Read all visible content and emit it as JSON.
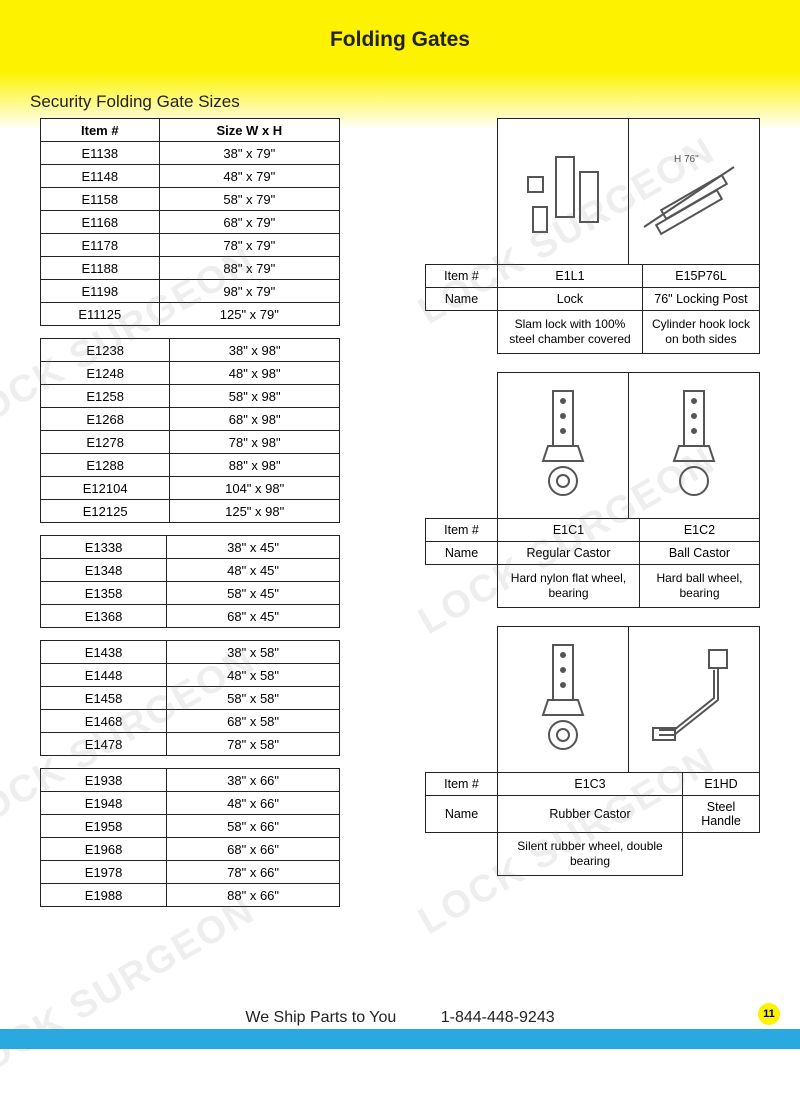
{
  "page_title": "Folding Gates",
  "subtitle": "Security Folding Gate Sizes",
  "size_table": {
    "columns": [
      "Item #",
      "Size W x H"
    ],
    "groups": [
      [
        [
          "E1138",
          "38\" x 79\""
        ],
        [
          "E1148",
          "48\" x 79\""
        ],
        [
          "E1158",
          "58\" x 79\""
        ],
        [
          "E1168",
          "68\" x 79\""
        ],
        [
          "E1178",
          "78\" x 79\""
        ],
        [
          "E1188",
          "88\" x 79\""
        ],
        [
          "E1198",
          "98\" x 79\""
        ],
        [
          "E11125",
          "125\" x 79\""
        ]
      ],
      [
        [
          "E1238",
          "38\" x 98\""
        ],
        [
          "E1248",
          "48\" x 98\""
        ],
        [
          "E1258",
          "58\" x 98\""
        ],
        [
          "E1268",
          "68\" x 98\""
        ],
        [
          "E1278",
          "78\" x 98\""
        ],
        [
          "E1288",
          "88\" x 98\""
        ],
        [
          "E12104",
          "104\" x 98\""
        ],
        [
          "E12125",
          "125\" x 98\""
        ]
      ],
      [
        [
          "E1338",
          "38\" x 45\""
        ],
        [
          "E1348",
          "48\" x 45\""
        ],
        [
          "E1358",
          "58\" x 45\""
        ],
        [
          "E1368",
          "68\" x 45\""
        ]
      ],
      [
        [
          "E1438",
          "38\" x 58\""
        ],
        [
          "E1448",
          "48\" x 58\""
        ],
        [
          "E1458",
          "58\" x 58\""
        ],
        [
          "E1468",
          "68\" x 58\""
        ],
        [
          "E1478",
          "78\" x 58\""
        ]
      ],
      [
        [
          "E1938",
          "38\" x 66\""
        ],
        [
          "E1948",
          "48\" x 66\""
        ],
        [
          "E1958",
          "58\" x 66\""
        ],
        [
          "E1968",
          "68\" x 66\""
        ],
        [
          "E1978",
          "78\" x 66\""
        ],
        [
          "E1988",
          "88\" x 66\""
        ]
      ]
    ]
  },
  "product_labels": {
    "item": "Item #",
    "name": "Name"
  },
  "products": [
    {
      "items": [
        "E1L1",
        "E15P76L"
      ],
      "names": [
        "Lock",
        "76\" Locking Post"
      ],
      "descs": [
        "Slam lock with 100% steel chamber covered",
        "Cylinder hook lock on both sides"
      ]
    },
    {
      "items": [
        "E1C1",
        "E1C2"
      ],
      "names": [
        "Regular Castor",
        "Ball Castor"
      ],
      "descs": [
        "Hard nylon flat wheel, bearing",
        "Hard ball wheel, bearing"
      ]
    },
    {
      "items": [
        "E1C3",
        "E1HD"
      ],
      "names": [
        "Rubber Castor",
        "Steel Handle"
      ],
      "descs": [
        "Silent rubber wheel, double bearing",
        ""
      ]
    }
  ],
  "footer": {
    "ship": "We Ship Parts to You",
    "phone": "1-844-448-9243"
  },
  "page_number": "11",
  "watermark_text": "LOCK SURGEON",
  "colors": {
    "yellow": "#fdf300",
    "blue": "#2aa9e0",
    "border": "#222222",
    "watermark": "rgba(120,120,120,0.13)"
  }
}
